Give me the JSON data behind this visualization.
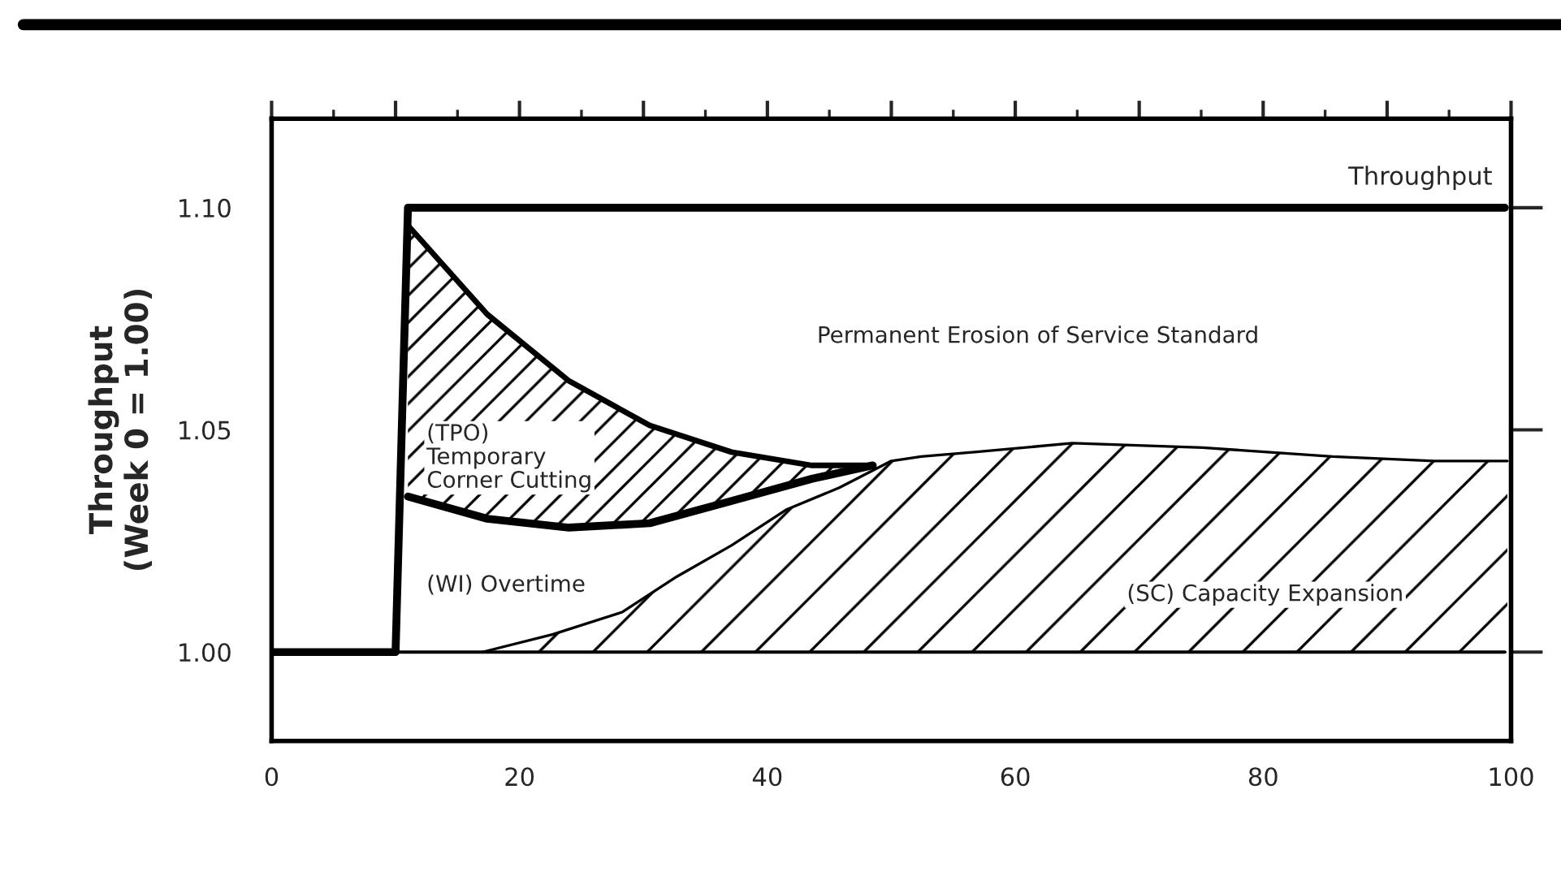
{
  "chart_data": {
    "type": "line",
    "ylabel": "Throughput\n(Week 0 = 1.00)",
    "xlim": [
      0,
      100
    ],
    "ylim": [
      0.98,
      1.12
    ],
    "xticks": [
      0,
      {
        "value": 10,
        "label": null
      },
      20,
      {
        "value": 30,
        "label": null
      },
      40,
      {
        "value": 50,
        "label": null
      },
      60,
      {
        "value": 70,
        "label": null
      },
      80,
      {
        "value": 90,
        "label": null
      },
      100
    ],
    "yticks": [
      {
        "value": 1.0,
        "label": "1.00"
      },
      {
        "value": 1.05,
        "label": "1.05"
      },
      {
        "value": 1.1,
        "label": "1.10"
      }
    ],
    "grid": false,
    "legend": false,
    "marker": "none",
    "line_style": "solid",
    "ref_lines": [
      {
        "axis": "y",
        "value": 1.0,
        "label": null,
        "color": "#000000"
      }
    ],
    "series": [
      {
        "name": "Throughput",
        "color": "#000000",
        "x": [
          0,
          10,
          11,
          99.5
        ],
        "values": [
          1.0,
          1.0,
          1.1,
          1.1
        ]
      },
      {
        "color": "#000000",
        "x": [
          11,
          17.4,
          24,
          30.5,
          37.1,
          43.6,
          48.5
        ],
        "values": [
          1.096,
          1.076,
          1.061,
          1.051,
          1.045,
          1.042,
          1.042
        ],
        "lower": [
          1.035,
          1.03,
          1.028,
          1.029,
          1.034,
          1.039,
          1.042
        ],
        "upper": [
          1.096,
          1.076,
          1.061,
          1.051,
          1.045,
          1.042,
          1.042
        ]
      },
      {
        "color": "#000000",
        "x": [
          11,
          17.4,
          24,
          30.5,
          37.1,
          43.6,
          48.5
        ],
        "values": [
          1.035,
          1.03,
          1.028,
          1.029,
          1.034,
          1.039,
          1.042
        ]
      },
      {
        "color": "#000000",
        "x": [
          17,
          22.7,
          28.3,
          32.7,
          37.1,
          41.5,
          45.8,
          50,
          52.4,
          56.7,
          64.6,
          75.1,
          85.6,
          93.8,
          99.7
        ],
        "values": [
          1.0,
          1.004,
          1.009,
          1.017,
          1.024,
          1.032,
          1.037,
          1.043,
          1.044,
          1.045,
          1.047,
          1.046,
          1.044,
          1.043,
          1.043
        ],
        "lower": [
          1.0,
          1.0,
          1.0,
          1.0,
          1.0,
          1.0,
          1.0,
          1.0,
          1.0,
          1.0,
          1.0,
          1.0,
          1.0,
          1.0,
          1.0
        ],
        "upper": [
          1.0,
          1.004,
          1.009,
          1.017,
          1.024,
          1.032,
          1.037,
          1.043,
          1.044,
          1.045,
          1.047,
          1.046,
          1.044,
          1.043,
          1.043
        ]
      }
    ],
    "annotations": [
      "Permanent Erosion of Service Standard",
      "(TPO)\nTemporary\nCorner Cutting",
      "(WI) Overtime",
      "(SC) Capacity Expansion"
    ]
  }
}
